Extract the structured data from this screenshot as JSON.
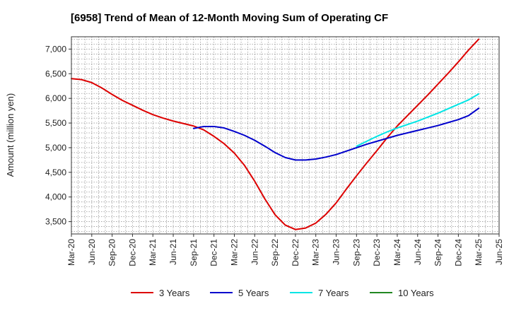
{
  "chart_data": {
    "type": "line",
    "title": "[6958]  Trend of Mean of 12-Month Moving Sum of Operating CF",
    "xlabel": "",
    "ylabel": "Amount (million yen)",
    "ylim": [
      3250,
      7250
    ],
    "yticks": [
      3500,
      4000,
      4500,
      5000,
      5500,
      6000,
      6500,
      7000
    ],
    "ytick_labels": [
      "3,500",
      "4,000",
      "4,500",
      "5,000",
      "5,500",
      "6,000",
      "6,500",
      "7,000"
    ],
    "x_index_range": [
      0,
      21
    ],
    "xtick_labels": [
      "Mar-20",
      "Jun-20",
      "Sep-20",
      "Dec-20",
      "Mar-21",
      "Jun-21",
      "Sep-21",
      "Dec-21",
      "Mar-22",
      "Jun-22",
      "Sep-22",
      "Dec-22",
      "Mar-23",
      "Jun-23",
      "Sep-23",
      "Dec-23",
      "Mar-24",
      "Jun-24",
      "Sep-24",
      "Dec-24",
      "Mar-25",
      "Jun-25"
    ],
    "grid": true,
    "legend_position": "bottom",
    "series": [
      {
        "name": "3 Years",
        "color": "#dd0000",
        "x": [
          0,
          0.5,
          1,
          1.5,
          2,
          2.5,
          3,
          3.5,
          4,
          4.5,
          5,
          5.5,
          6,
          6.5,
          7,
          7.5,
          8,
          8.5,
          9,
          9.5,
          10,
          10.5,
          11,
          11.5,
          12,
          12.5,
          13,
          13.5,
          14,
          14.5,
          15,
          15.5,
          16,
          16.5,
          17,
          17.5,
          18,
          18.5,
          19,
          19.5,
          20
        ],
        "values": [
          6400,
          6380,
          6320,
          6210,
          6080,
          5960,
          5860,
          5760,
          5670,
          5600,
          5540,
          5490,
          5440,
          5360,
          5230,
          5080,
          4890,
          4640,
          4320,
          3960,
          3640,
          3430,
          3340,
          3370,
          3470,
          3650,
          3880,
          4160,
          4430,
          4690,
          4940,
          5200,
          5440,
          5650,
          5860,
          6070,
          6290,
          6510,
          6740,
          6980,
          7200
        ]
      },
      {
        "name": "5 Years",
        "color": "#0000cc",
        "x": [
          6,
          6.5,
          7,
          7.5,
          8,
          8.5,
          9,
          9.5,
          10,
          10.5,
          11,
          11.5,
          12,
          12.5,
          13,
          13.5,
          14,
          14.5,
          15,
          15.5,
          16,
          16.5,
          17,
          17.5,
          18,
          18.5,
          19,
          19.5,
          20
        ],
        "values": [
          5390,
          5430,
          5430,
          5400,
          5330,
          5250,
          5150,
          5030,
          4900,
          4800,
          4750,
          4750,
          4770,
          4810,
          4860,
          4930,
          5000,
          5070,
          5130,
          5190,
          5250,
          5300,
          5350,
          5400,
          5450,
          5510,
          5570,
          5650,
          5800
        ]
      },
      {
        "name": "7 Years",
        "color": "#00e5e5",
        "x": [
          14,
          14.5,
          15,
          15.5,
          16,
          16.5,
          17,
          17.5,
          18,
          18.5,
          19,
          19.5,
          20
        ],
        "values": [
          5030,
          5130,
          5230,
          5320,
          5400,
          5470,
          5540,
          5620,
          5700,
          5790,
          5880,
          5970,
          6090
        ]
      },
      {
        "name": "10 Years",
        "color": "#228822",
        "x": [],
        "values": []
      }
    ]
  }
}
